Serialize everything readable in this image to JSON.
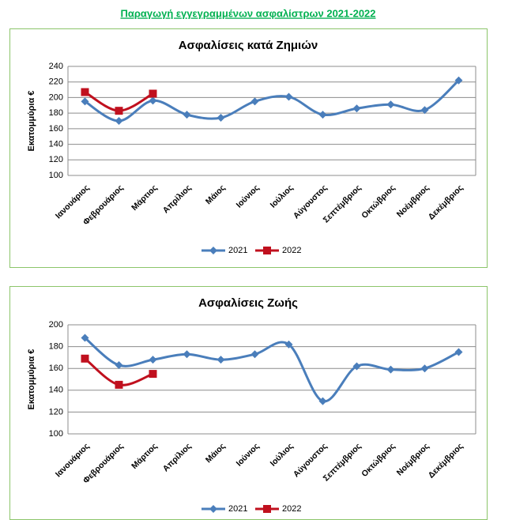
{
  "header": {
    "title": "Παραγωγή εγγεγραμμένων ασφαλίστρων 2021-2022"
  },
  "chart_data": [
    {
      "type": "line",
      "title": "Ασφαλίσεις κατά Ζημιών",
      "y_label": "Εκατομμύρια €",
      "categories": [
        "Ιανουάριος",
        "Φεβρουάριος",
        "Μάρτιος",
        "Απρίλιος",
        "Μάιος",
        "Ιούνιος",
        "Ιούλιος",
        "Αύγουστος",
        "Σεπτέμβριος",
        "Οκτώβριος",
        "Νοέμβριος",
        "Δεκέμβριος"
      ],
      "series": [
        {
          "name": "2021",
          "color": "#4a7ebb",
          "marker": "diamond",
          "values": [
            195,
            170,
            196,
            178,
            174,
            195,
            201,
            178,
            186,
            191,
            184,
            222
          ]
        },
        {
          "name": "2022",
          "color": "#c0101e",
          "marker": "square",
          "values": [
            207,
            183,
            205,
            null,
            null,
            null,
            null,
            null,
            null,
            null,
            null,
            null
          ]
        }
      ],
      "ylim": [
        100,
        240
      ],
      "yticks": [
        100,
        120,
        140,
        160,
        180,
        200,
        220,
        240
      ],
      "grid": true,
      "legend": "bottom"
    },
    {
      "type": "line",
      "title": "Ασφαλίσεις Ζωής",
      "y_label": "Εκατομμύρια €",
      "categories": [
        "Ιανουάριος",
        "Φεβρουάριος",
        "Μάρτιος",
        "Απρίλιος",
        "Μάιος",
        "Ιούνιος",
        "Ιούλιος",
        "Αύγουστος",
        "Σεπτέμβριος",
        "Οκτώβριος",
        "Νοέμβριος",
        "Δεκέμβριος"
      ],
      "series": [
        {
          "name": "2021",
          "color": "#4a7ebb",
          "marker": "diamond",
          "values": [
            188,
            163,
            168,
            173,
            168,
            173,
            182,
            130,
            162,
            159,
            160,
            175
          ]
        },
        {
          "name": "2022",
          "color": "#c0101e",
          "marker": "square",
          "values": [
            169,
            145,
            155,
            null,
            null,
            null,
            null,
            null,
            null,
            null,
            null,
            null
          ]
        }
      ],
      "ylim": [
        100,
        200
      ],
      "yticks": [
        100,
        120,
        140,
        160,
        180,
        200
      ],
      "grid": true,
      "legend": "bottom"
    }
  ]
}
